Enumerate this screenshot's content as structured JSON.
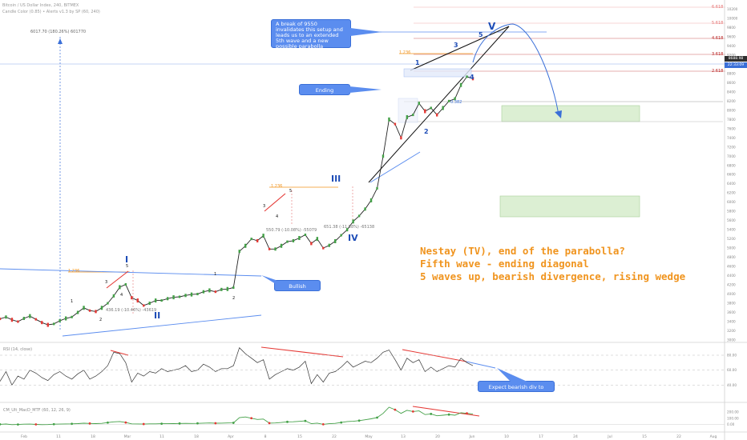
{
  "header": {
    "symbol_line": "Bitcoin / US Dollar Index, 240, BITMEX",
    "indicator_line": "Candle Color (0.85) • Alerts v1.3 by SP (60, 240)"
  },
  "measure_top": "6017.70 (180.26%) 601770",
  "measure_ii": "436.19 (-10.46%) -43619",
  "measure_iii": "550.79 (-10.08%) -55079",
  "measure_iv": "651.38 (-11.58%) -65138",
  "callouts": {
    "break": "A break of 9550 invalidates this setup and leads us to an extended 5th wave and a new possible parabolla",
    "ending": "Ending diagonal",
    "bullish": "Bullish breakout",
    "bearish": "Expect bearish div to extend"
  },
  "commentary": [
    "Nestay (TV), end of the parabolla?",
    "Fifth wave - ending diagonal",
    "5 waves up, bearish divergence, rising wedge"
  ],
  "waves_major": [
    "I",
    "II",
    "III",
    "IV",
    "V"
  ],
  "waves_minor": [
    "1",
    "2",
    "3",
    "4",
    "5"
  ],
  "fib_labels": {
    "e1236_a": "1.236",
    "e1236_b": "1.236",
    "e1236_c": "1.236",
    "f0382": "0.382",
    "f2618": "2.618",
    "f3618": "3.618",
    "f4618": "4.618",
    "f5618": "5.618",
    "f6618": "6.618"
  },
  "price_badges": [
    "8688.98",
    "22:33:09"
  ],
  "rsi_label": "RSI (14, close)",
  "macd_label": "CM_Ult_MacD_MTF (60, 12, 26, 9)",
  "colors": {
    "wave_blue": "#1e4db7",
    "fib_orange": "#f0941e",
    "divergence_red": "#e53935",
    "trendline_blue": "#5b8def",
    "target_green": "#dcefd3",
    "macd_red": "#e53935",
    "macd_green": "#43a047"
  },
  "chart_data": [
    {
      "type": "line",
      "title": "Bitcoin / US Dollar Index, 240, BITMEX",
      "xlabel": "",
      "ylabel": "",
      "ylim": [
        3000,
        10400
      ],
      "x_ticks": [
        "Feb",
        "11",
        "18",
        "Mar",
        "11",
        "18",
        "Apr",
        "8",
        "15",
        "22",
        "May",
        "13",
        "20",
        "Jun",
        "10",
        "17",
        "24",
        "Jul",
        "15",
        "22",
        "Aug"
      ],
      "y_ticks": [
        3000,
        3200,
        3400,
        3600,
        3800,
        4000,
        4200,
        4400,
        4600,
        4800,
        5000,
        5200,
        5400,
        5600,
        5800,
        6000,
        6200,
        6400,
        6600,
        6800,
        7000,
        7200,
        7400,
        7600,
        7800,
        8000,
        8200,
        8400,
        8600,
        8800,
        9000,
        9200,
        9400,
        9600,
        9800,
        10000,
        10200
      ],
      "series": [
        {
          "values": [
            3460,
            3500,
            3440,
            3400,
            3470,
            3520,
            3450,
            3380,
            3330,
            3350,
            3420,
            3470,
            3500,
            3600,
            3700,
            3640,
            3620,
            3700,
            3800,
            3960,
            4150,
            4210,
            3920,
            3860,
            3750,
            3800,
            3860,
            3860,
            3900,
            3930,
            3940,
            3970,
            3990,
            4000,
            4050,
            4080,
            4050,
            4100,
            4110,
            4140,
            4930,
            5050,
            5200,
            5160,
            5270,
            4980,
            4980,
            5050,
            5140,
            5160,
            5220,
            5290,
            5100,
            5200,
            5000,
            5060,
            5150,
            5280,
            5400,
            5580,
            5700,
            5850,
            6040,
            6300,
            7000,
            7800,
            7700,
            7400,
            7850,
            7900,
            8150,
            7980,
            8050,
            7900,
            8050,
            8200,
            8250,
            8550,
            8730,
            8688
          ]
        }
      ]
    },
    {
      "type": "line",
      "title": "RSI (14, close)",
      "ylim": [
        20,
        95
      ],
      "y_ticks": [
        40,
        60,
        80
      ],
      "series": [
        {
          "values": [
            45,
            58,
            40,
            52,
            48,
            60,
            56,
            50,
            46,
            54,
            58,
            52,
            48,
            55,
            60,
            48,
            52,
            58,
            66,
            84,
            82,
            70,
            44,
            56,
            52,
            58,
            56,
            62,
            58,
            60,
            62,
            66,
            58,
            60,
            68,
            64,
            58,
            62,
            62,
            66,
            90,
            82,
            76,
            70,
            74,
            48,
            54,
            58,
            62,
            60,
            64,
            72,
            42,
            54,
            44,
            56,
            58,
            64,
            72,
            64,
            68,
            72,
            70,
            76,
            84,
            87,
            74,
            60,
            76,
            70,
            74,
            58,
            64,
            58,
            62,
            66,
            64,
            76,
            70,
            66
          ]
        }
      ]
    },
    {
      "type": "line",
      "title": "CM_Ult_MacD_MTF (60, 12, 26, 9)",
      "ylim": [
        -100,
        320
      ],
      "y_ticks": [
        0,
        100,
        200
      ],
      "series": [
        {
          "values": [
            0,
            5,
            -5,
            -3,
            2,
            4,
            -2,
            -6,
            -4,
            2,
            4,
            6,
            8,
            12,
            18,
            14,
            12,
            16,
            28,
            40,
            46,
            30,
            8,
            6,
            4,
            8,
            8,
            10,
            10,
            12,
            14,
            16,
            14,
            16,
            20,
            22,
            18,
            20,
            22,
            24,
            110,
            120,
            100,
            80,
            86,
            20,
            22,
            30,
            40,
            42,
            48,
            56,
            10,
            20,
            0,
            10,
            16,
            30,
            46,
            50,
            60,
            74,
            90,
            110,
            180,
            280,
            240,
            180,
            230,
            210,
            220,
            160,
            170,
            140,
            150,
            160,
            150,
            190,
            180,
            170
          ]
        }
      ]
    }
  ]
}
